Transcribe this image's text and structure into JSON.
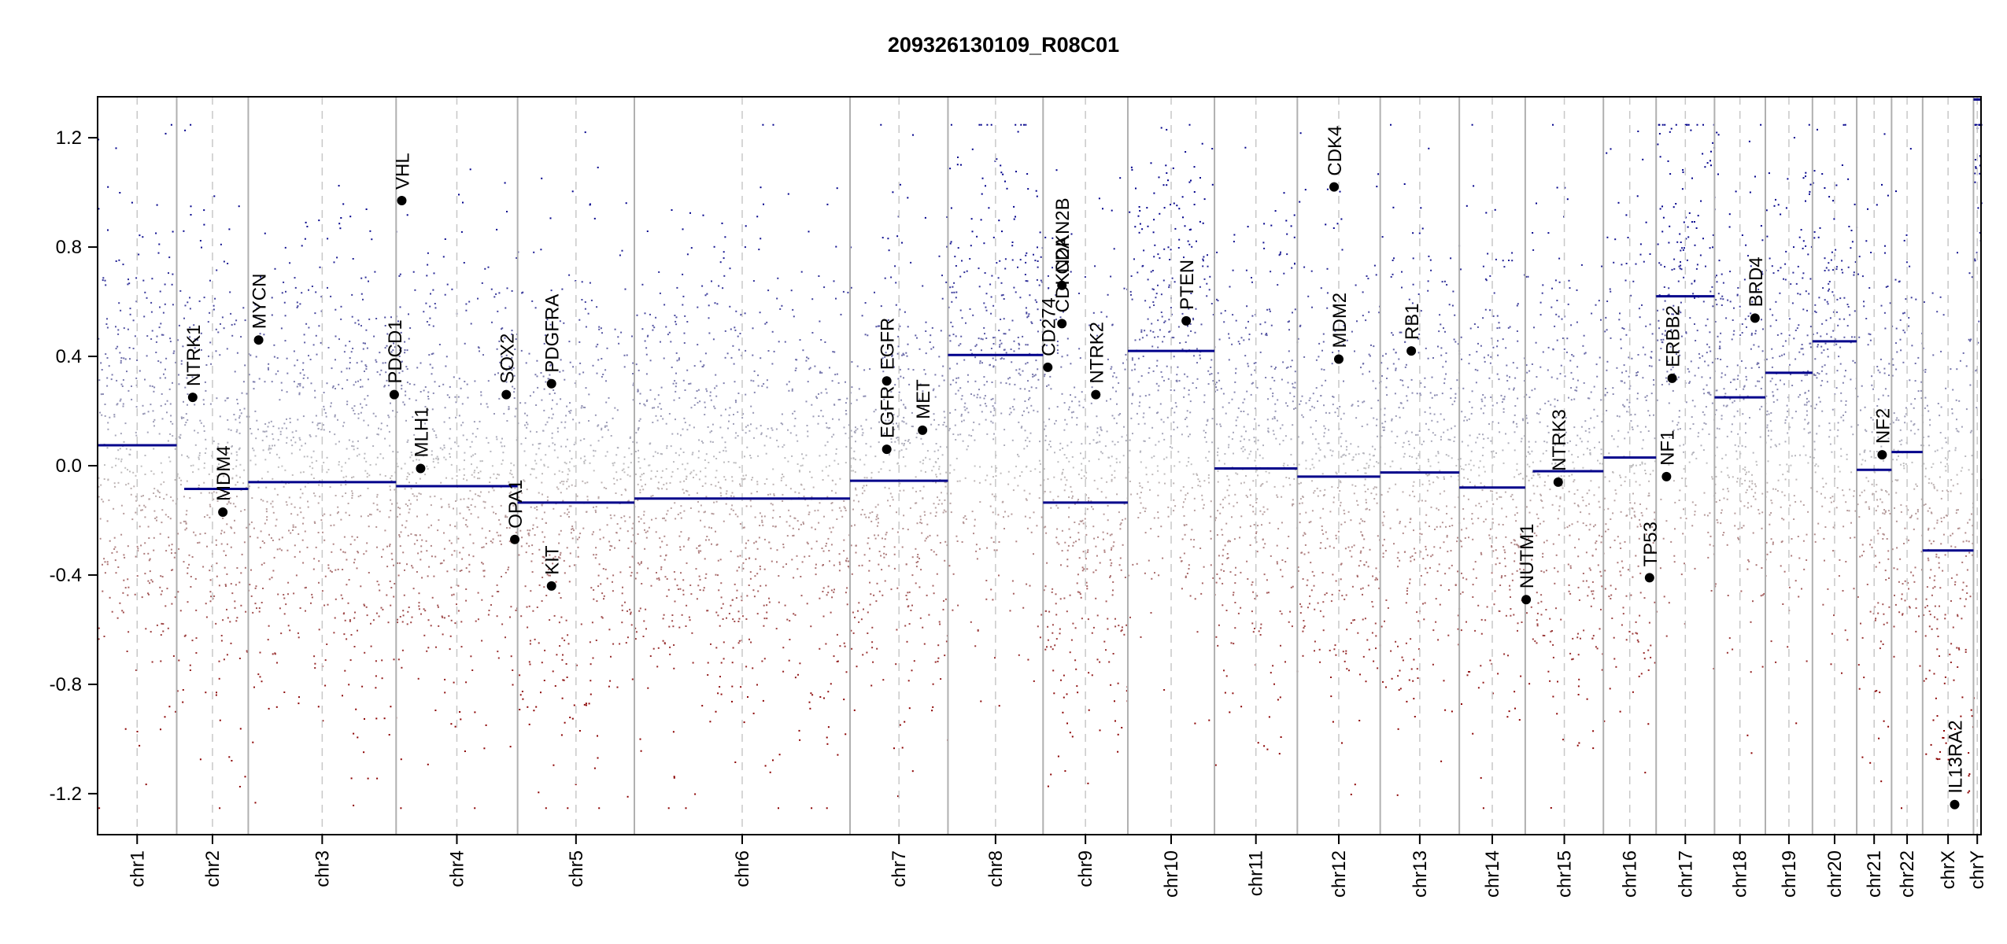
{
  "chart_data": {
    "type": "scatter",
    "title": "209326130109_R08C01",
    "xlabel": "",
    "ylabel": "",
    "ylim": [
      -1.35,
      1.35
    ],
    "y_ticks": [
      -1.2,
      -0.8,
      -0.4,
      0.0,
      0.4,
      0.8,
      1.2
    ],
    "y_tick_labels": [
      "-1.2",
      "-0.8",
      "-0.4",
      "0.0",
      "0.4",
      "0.8",
      "1.2"
    ],
    "chromosomes": [
      {
        "name": "chr1",
        "start": 0,
        "end": 0.042,
        "seg": [
          [
            0,
            0.042,
            0.075
          ]
        ]
      },
      {
        "name": "chr2",
        "start": 0.042,
        "end": 0.08,
        "seg": [
          [
            0.046,
            0.08,
            -0.085
          ]
        ]
      },
      {
        "name": "chr3",
        "start": 0.08,
        "end": 0.1585,
        "seg": [
          [
            0.08,
            0.1585,
            -0.06
          ]
        ]
      },
      {
        "name": "chr4",
        "start": 0.1585,
        "end": 0.223,
        "seg": [
          [
            0.1585,
            0.223,
            -0.075
          ]
        ]
      },
      {
        "name": "chr5",
        "start": 0.223,
        "end": 0.285,
        "seg": [
          [
            0.223,
            0.285,
            -0.135
          ]
        ]
      },
      {
        "name": "chr6",
        "start": 0.285,
        "end": 0.3995,
        "seg": [
          [
            0.285,
            0.3995,
            -0.12
          ]
        ]
      },
      {
        "name": "chr7",
        "start": 0.3995,
        "end": 0.4515,
        "seg": [
          [
            0.3995,
            0.4515,
            -0.055
          ]
        ]
      },
      {
        "name": "chr8",
        "start": 0.4515,
        "end": 0.502,
        "seg": [
          [
            0.4515,
            0.502,
            0.405
          ]
        ]
      },
      {
        "name": "chr9",
        "start": 0.502,
        "end": 0.547,
        "seg": [
          [
            0.502,
            0.547,
            -0.135
          ]
        ]
      },
      {
        "name": "chr10",
        "start": 0.547,
        "end": 0.593,
        "seg": [
          [
            0.547,
            0.593,
            0.42
          ]
        ]
      },
      {
        "name": "chr11",
        "start": 0.593,
        "end": 0.637,
        "seg": [
          [
            0.593,
            0.637,
            -0.01
          ]
        ]
      },
      {
        "name": "chr12",
        "start": 0.637,
        "end": 0.681,
        "seg": [
          [
            0.637,
            0.681,
            -0.04
          ]
        ]
      },
      {
        "name": "chr13",
        "start": 0.681,
        "end": 0.723,
        "seg": [
          [
            0.681,
            0.723,
            -0.025
          ]
        ]
      },
      {
        "name": "chr14",
        "start": 0.723,
        "end": 0.758,
        "seg": [
          [
            0.723,
            0.758,
            -0.08
          ]
        ]
      },
      {
        "name": "chr15",
        "start": 0.758,
        "end": 0.7995,
        "seg": [
          [
            0.762,
            0.7995,
            -0.02
          ]
        ]
      },
      {
        "name": "chr16",
        "start": 0.7995,
        "end": 0.8275,
        "seg": [
          [
            0.7995,
            0.8275,
            0.03
          ]
        ]
      },
      {
        "name": "chr17",
        "start": 0.8275,
        "end": 0.8585,
        "seg": [
          [
            0.8275,
            0.8585,
            0.62
          ]
        ]
      },
      {
        "name": "chr18",
        "start": 0.8585,
        "end": 0.8855,
        "seg": [
          [
            0.8585,
            0.8855,
            0.25
          ]
        ]
      },
      {
        "name": "chr19",
        "start": 0.8855,
        "end": 0.9105,
        "seg": [
          [
            0.8855,
            0.9105,
            0.34
          ]
        ]
      },
      {
        "name": "chr20",
        "start": 0.9105,
        "end": 0.934,
        "seg": [
          [
            0.9105,
            0.934,
            0.455
          ]
        ]
      },
      {
        "name": "chr21",
        "start": 0.934,
        "end": 0.9525,
        "seg": [
          [
            0.934,
            0.9525,
            -0.015
          ]
        ]
      },
      {
        "name": "chr22",
        "start": 0.9525,
        "end": 0.969,
        "seg": [
          [
            0.9525,
            0.969,
            0.05
          ]
        ]
      },
      {
        "name": "chrX",
        "start": 0.969,
        "end": 0.996,
        "seg": [
          [
            0.969,
            0.996,
            -0.31
          ]
        ]
      },
      {
        "name": "chrY",
        "start": 0.996,
        "end": 1.0,
        "seg": [
          [
            0.996,
            1.0,
            1.34
          ]
        ]
      }
    ],
    "genes": [
      {
        "name": "NTRK1",
        "x": 0.0505,
        "y": 0.25
      },
      {
        "name": "MYCN",
        "x": 0.0855,
        "y": 0.46
      },
      {
        "name": "MDM4",
        "x": 0.0665,
        "y": -0.17
      },
      {
        "name": "PDCD1",
        "x": 0.1575,
        "y": 0.26
      },
      {
        "name": "VHL",
        "x": 0.1615,
        "y": 0.97
      },
      {
        "name": "MLH1",
        "x": 0.1715,
        "y": -0.01
      },
      {
        "name": "SOX2",
        "x": 0.217,
        "y": 0.26
      },
      {
        "name": "OPA1",
        "x": 0.2215,
        "y": -0.27
      },
      {
        "name": "PDGFRA",
        "x": 0.241,
        "y": 0.3
      },
      {
        "name": "KIT",
        "x": 0.241,
        "y": -0.44
      },
      {
        "name": "EGFR",
        "x": 0.419,
        "y": 0.06
      },
      {
        "name": "EGFR",
        "x": 0.419,
        "y": 0.31
      },
      {
        "name": "MET",
        "x": 0.438,
        "y": 0.13
      },
      {
        "name": "CD274",
        "x": 0.5045,
        "y": 0.36
      },
      {
        "name": "CDKN2A",
        "x": 0.512,
        "y": 0.52
      },
      {
        "name": "CDKN2B",
        "x": 0.512,
        "y": 0.66
      },
      {
        "name": "NTRK2",
        "x": 0.53,
        "y": 0.26
      },
      {
        "name": "PTEN",
        "x": 0.578,
        "y": 0.53
      },
      {
        "name": "MDM2",
        "x": 0.659,
        "y": 0.39
      },
      {
        "name": "CDK4",
        "x": 0.6565,
        "y": 1.02
      },
      {
        "name": "RB1",
        "x": 0.6975,
        "y": 0.42
      },
      {
        "name": "NUTM1",
        "x": 0.7585,
        "y": -0.49
      },
      {
        "name": "NTRK3",
        "x": 0.7755,
        "y": -0.06
      },
      {
        "name": "TP53",
        "x": 0.824,
        "y": -0.41
      },
      {
        "name": "NF1",
        "x": 0.833,
        "y": -0.04
      },
      {
        "name": "ERBB2",
        "x": 0.836,
        "y": 0.32
      },
      {
        "name": "BRD4",
        "x": 0.88,
        "y": 0.54
      },
      {
        "name": "NF2",
        "x": 0.9475,
        "y": 0.04
      },
      {
        "name": "IL13RA2",
        "x": 0.986,
        "y": -1.24
      }
    ],
    "point_colors": {
      "high": "#00008b",
      "neutral": "#c0c0c0",
      "low": "#8b0000"
    },
    "segment_color": "#00008b",
    "grid": false
  }
}
